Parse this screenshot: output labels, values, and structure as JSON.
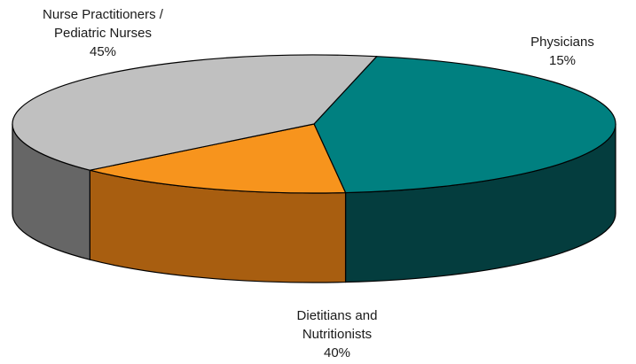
{
  "chart_data": {
    "type": "pie",
    "style": "3d",
    "slices": [
      {
        "label_lines": [
          "Nurse Practitioners /",
          "Pediatric Nurses"
        ],
        "value": 45,
        "value_label": "45%",
        "color": "#008080",
        "side_color": "#043d3e"
      },
      {
        "label_lines": [
          "Physicians"
        ],
        "value": 15,
        "value_label": "15%",
        "color": "#f7941d",
        "side_color": "#a85e10"
      },
      {
        "label_lines": [
          "Dietitians and",
          "Nutritionists"
        ],
        "value": 40,
        "value_label": "40%",
        "color": "#c0c0c0",
        "side_color": "#666666"
      }
    ]
  }
}
